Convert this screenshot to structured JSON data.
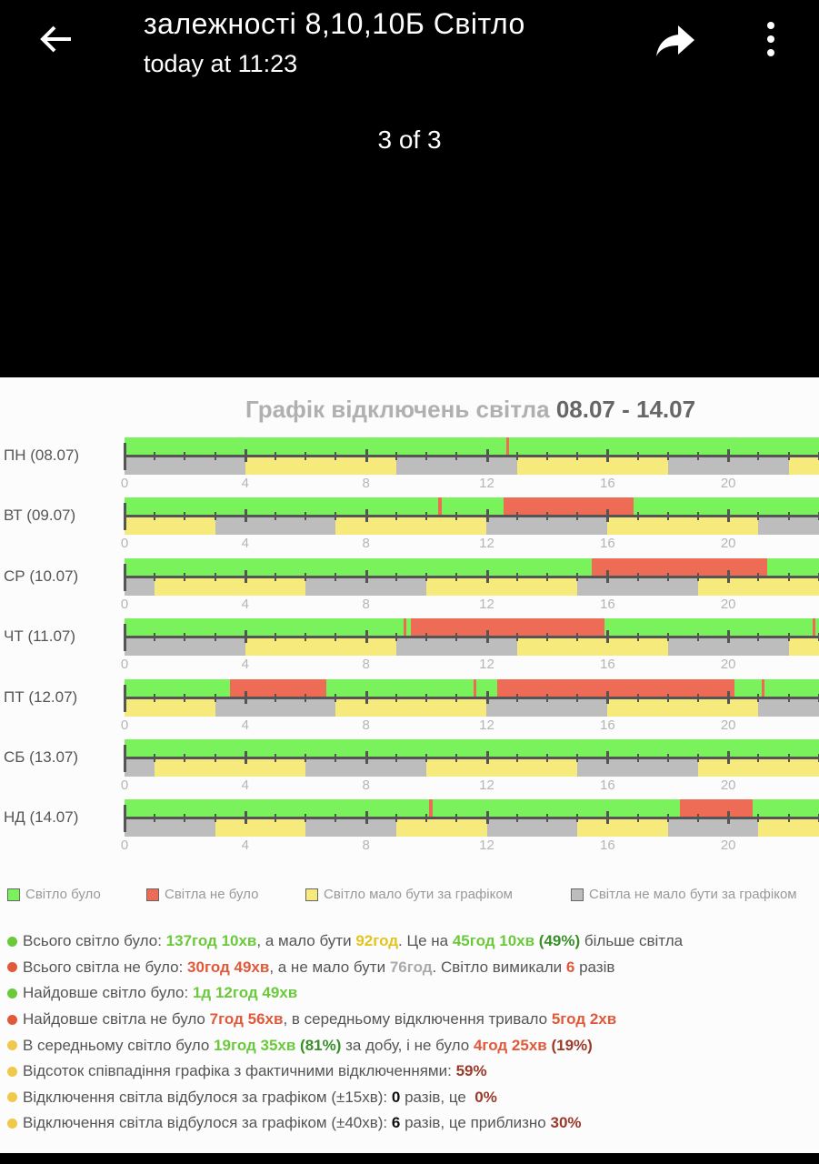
{
  "header": {
    "title": "залежності 8,10,10Б   Світло",
    "time": "today at 11:23",
    "counter": "3 of 3"
  },
  "colors": {
    "on": "#79f25b",
    "off": "#ee6b55",
    "sched_on": "#f6ea7c",
    "sched_off": "#bdbdbd"
  },
  "chart_data": {
    "type": "timeline",
    "title_prefix": "Графік відключень світла",
    "title_dates": "08.07 - 14.07",
    "x_ticks": [
      "0",
      "4",
      "8",
      "12",
      "16",
      "20"
    ],
    "x_range": [
      0,
      24
    ],
    "days": [
      {
        "label": "ПН (08.07)",
        "off": [
          [
            12.65,
            12.75
          ]
        ],
        "schedule_on": [
          [
            4,
            9
          ],
          [
            13,
            18
          ],
          [
            22,
            24
          ]
        ]
      },
      {
        "label": "ВТ (09.07)",
        "off": [
          [
            10.4,
            10.5
          ],
          [
            12.55,
            16.85
          ]
        ],
        "schedule_on": [
          [
            0,
            3
          ],
          [
            7,
            12
          ],
          [
            16,
            21
          ]
        ]
      },
      {
        "label": "СР (10.07)",
        "off": [
          [
            15.47,
            21.3
          ]
        ],
        "schedule_on": [
          [
            1,
            6
          ],
          [
            10,
            15
          ],
          [
            19,
            24
          ]
        ]
      },
      {
        "label": "ЧТ (11.07)",
        "off": [
          [
            9.25,
            9.35
          ],
          [
            9.5,
            15.9
          ],
          [
            22.8,
            22.9
          ]
        ],
        "schedule_on": [
          [
            4,
            9
          ],
          [
            13,
            18
          ],
          [
            22,
            24
          ]
        ]
      },
      {
        "label": "ПТ (12.07)",
        "off": [
          [
            3.5,
            6.68
          ],
          [
            11.55,
            11.65
          ],
          [
            12.35,
            20.2
          ],
          [
            21.1,
            21.2
          ]
        ],
        "schedule_on": [
          [
            0,
            3
          ],
          [
            7,
            12
          ],
          [
            16,
            21
          ]
        ]
      },
      {
        "label": "СБ (13.07)",
        "off": [],
        "schedule_on": [
          [
            1,
            6
          ],
          [
            10,
            15
          ],
          [
            19,
            24
          ]
        ]
      },
      {
        "label": "НД (14.07)",
        "off": [
          [
            10.1,
            10.2
          ],
          [
            18.4,
            20.8
          ]
        ],
        "schedule_on": [
          [
            3,
            6
          ],
          [
            9,
            12
          ],
          [
            15,
            18
          ],
          [
            21,
            24
          ]
        ]
      }
    ]
  },
  "legend": [
    {
      "label": "Світло було",
      "color": "#79f25b"
    },
    {
      "label": "Світла не було",
      "color": "#ee6b55"
    },
    {
      "label": "Світло мало бути за графіком",
      "color": "#f6ea7c"
    },
    {
      "label": "Світла не мало бути за графіком",
      "color": "#bdbdbd"
    }
  ],
  "stats": [
    {
      "dot": "#6cc93c",
      "parts": [
        {
          "t": "Всього світло було: "
        },
        {
          "t": "137год 10хв",
          "c": "#6cc93c"
        },
        {
          "t": ", а мало бути "
        },
        {
          "t": "92год",
          "c": "#e2c41e"
        },
        {
          "t": ". Це на "
        },
        {
          "t": "45год 10хв",
          "c": "#6cc93c"
        },
        {
          "t": " (49%)",
          "c": "#3a8f2a"
        },
        {
          "t": " більше світла"
        }
      ]
    },
    {
      "dot": "#e05a3a",
      "parts": [
        {
          "t": "Всього світла не було: "
        },
        {
          "t": "30год 49хв",
          "c": "#e05a3a"
        },
        {
          "t": ", а не мало бути "
        },
        {
          "t": "76год",
          "c": "#aaaaaa"
        },
        {
          "t": ". Світло вимикали "
        },
        {
          "t": "6",
          "c": "#e05a3a"
        },
        {
          "t": " разів"
        }
      ]
    },
    {
      "dot": "#6cc93c",
      "parts": [
        {
          "t": "Найдовше світло було: "
        },
        {
          "t": "1д 12год 49хв",
          "c": "#6cc93c"
        }
      ]
    },
    {
      "dot": "#e05a3a",
      "parts": [
        {
          "t": "Найдовше світла не було "
        },
        {
          "t": "7год 56хв",
          "c": "#e05a3a"
        },
        {
          "t": ", в середньому відключення тривало "
        },
        {
          "t": "5год 2хв",
          "c": "#e05a3a"
        }
      ]
    },
    {
      "dot": "#f0c94a",
      "parts": [
        {
          "t": "В середньому світло було "
        },
        {
          "t": "19год 35хв",
          "c": "#6cc93c"
        },
        {
          "t": " (81%)",
          "c": "#3a8f2a"
        },
        {
          "t": " за добу, і не було "
        },
        {
          "t": "4год 25хв",
          "c": "#e05a3a"
        },
        {
          "t": " (19%)",
          "c": "#9a3a2a"
        }
      ]
    },
    {
      "dot": "#f0c94a",
      "parts": [
        {
          "t": "Відсоток співпадіння графіка з фактичними відключеннями: "
        },
        {
          "t": "59%",
          "c": "#9a3a2a"
        }
      ]
    },
    {
      "dot": "#f0c94a",
      "parts": [
        {
          "t": "Відключення світла відбулося за графіком (±15хв): "
        },
        {
          "t": "0",
          "c": "#111111"
        },
        {
          "t": " разів, це  "
        },
        {
          "t": "0%",
          "c": "#9a3a2a"
        }
      ]
    },
    {
      "dot": "#f0c94a",
      "parts": [
        {
          "t": "Відключення світла відбулося за графіком (±40хв): "
        },
        {
          "t": "6",
          "c": "#111111"
        },
        {
          "t": " разів, це приблизно "
        },
        {
          "t": "30%",
          "c": "#9a3a2a"
        }
      ]
    }
  ]
}
